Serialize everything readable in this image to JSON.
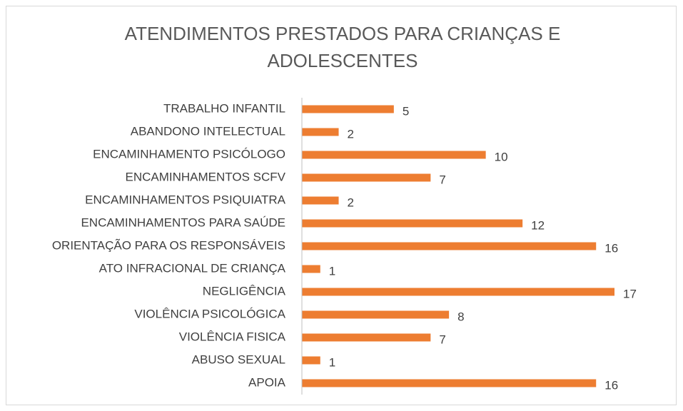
{
  "chart_data": {
    "type": "bar",
    "orientation": "horizontal",
    "title": "ATENDIMENTOS PRESTADOS PARA CRIANÇAS E ADOLESCENTES",
    "categories": [
      "TRABALHO INFANTIL",
      "ABANDONO INTELECTUAL",
      "ENCAMINHAMENTO PSICÓLOGO",
      "ENCAMINHAMENTOS SCFV",
      "ENCAMINHAMENTOS PSIQUIATRA",
      "ENCAMINHAMENTOS PARA SAÚDE",
      "ORIENTAÇÃO PARA OS RESPONSÁVEIS",
      "ATO INFRACIONAL DE CRIANÇA",
      "NEGLIGÊNCIA",
      "VIOLÊNCIA PSICOLÓGICA",
      "VIOLÊNCIA FISICA",
      "ABUSO SEXUAL",
      "APOIA"
    ],
    "values": [
      5,
      2,
      10,
      7,
      2,
      12,
      16,
      1,
      17,
      8,
      7,
      1,
      16
    ],
    "color": "#ed7d31"
  }
}
